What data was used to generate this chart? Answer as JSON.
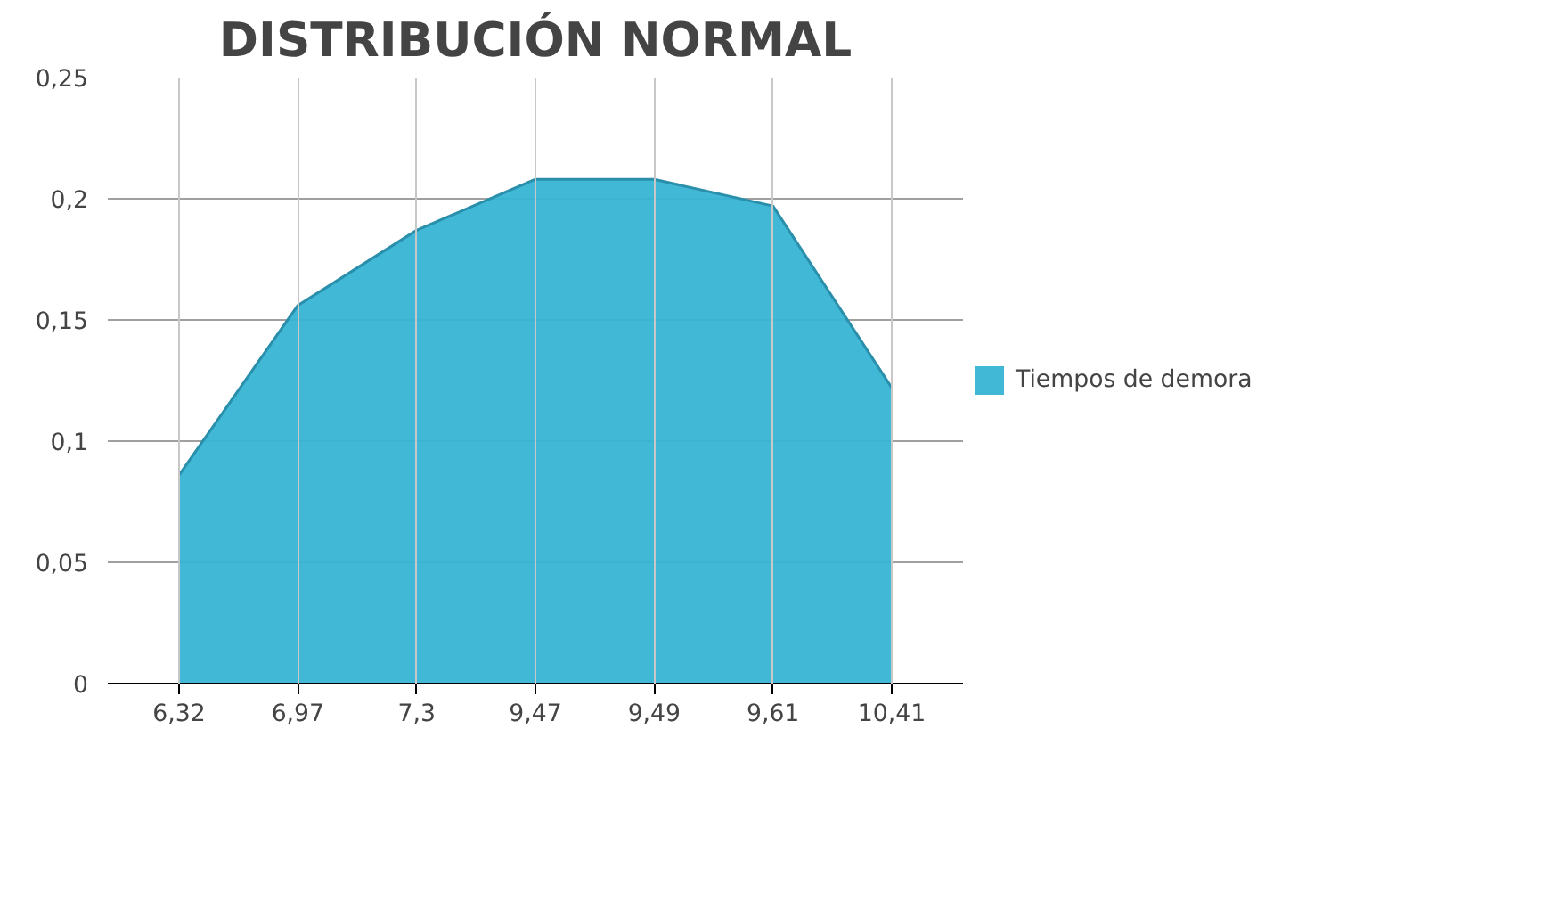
{
  "chart_data": {
    "type": "area",
    "title": "DISTRIBUCIÓN NORMAL",
    "categories": [
      "6,32",
      "6,97",
      "7,3",
      "9,47",
      "9,49",
      "9,61",
      "10,41"
    ],
    "series": [
      {
        "name": "Tiempos de demora",
        "color": "#36b4d4",
        "values": [
          0.086,
          0.156,
          0.187,
          0.208,
          0.208,
          0.197,
          0.122
        ]
      }
    ],
    "ylim": [
      0,
      0.25
    ],
    "yticks": [
      0,
      {
        "value": 0.05,
        "label": "0,05"
      },
      {
        "value": 0.1,
        "label": "0,1"
      },
      {
        "value": 0.15,
        "label": "0,15"
      },
      {
        "value": 0.2,
        "label": "0,2"
      },
      {
        "value": 0.25,
        "label": "0,25"
      }
    ],
    "grid": true,
    "legend": "right"
  }
}
